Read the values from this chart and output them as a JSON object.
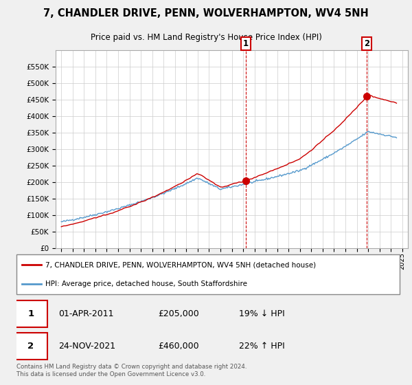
{
  "title": "7, CHANDLER DRIVE, PENN, WOLVERHAMPTON, WV4 5NH",
  "subtitle": "Price paid vs. HM Land Registry's House Price Index (HPI)",
  "ylim": [
    0,
    600000
  ],
  "ytick_values": [
    0,
    50000,
    100000,
    150000,
    200000,
    250000,
    300000,
    350000,
    400000,
    450000,
    500000,
    550000
  ],
  "xlim_start": 1994.5,
  "xlim_end": 2025.5,
  "sale1_x": 2011.25,
  "sale1_y": 205000,
  "sale2_x": 2021.9,
  "sale2_y": 460000,
  "vline1_x": 2011.25,
  "vline2_x": 2021.9,
  "legend_line1": "7, CHANDLER DRIVE, PENN, WOLVERHAMPTON, WV4 5NH (detached house)",
  "legend_line2": "HPI: Average price, detached house, South Staffordshire",
  "annotation1_date": "01-APR-2011",
  "annotation1_price": "£205,000",
  "annotation1_hpi": "19% ↓ HPI",
  "annotation2_date": "24-NOV-2021",
  "annotation2_price": "£460,000",
  "annotation2_hpi": "22% ↑ HPI",
  "footer": "Contains HM Land Registry data © Crown copyright and database right 2024.\nThis data is licensed under the Open Government Licence v3.0.",
  "line_color_red": "#cc0000",
  "line_color_blue": "#5599cc",
  "vline_color": "#cc0000"
}
